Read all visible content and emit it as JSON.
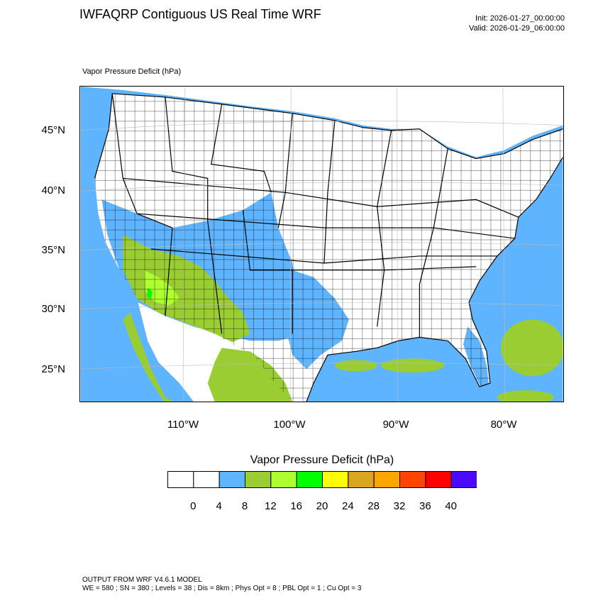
{
  "header": {
    "title": "IWFAQRP Contiguous US Real Time WRF",
    "init": "Init: 2026-01-27_00:00:00",
    "valid": "Valid: 2026-01-29_06:00:00"
  },
  "field": {
    "label": "Vapor Pressure Deficit   (hPa)"
  },
  "map": {
    "lat_labels": [
      "45°N",
      "40°N",
      "35°N",
      "30°N",
      "25°N"
    ],
    "lon_labels": [
      "110°W",
      "100°W",
      "90°W",
      "80°W"
    ],
    "colors": {
      "ocean_low_vpd": "#5fb4ff",
      "land_low": "#ffffff",
      "vpd_8_12": "#9acd32",
      "vpd_12_16": "#adff2f",
      "boundary": "#000000",
      "grid": "#bbbbbb"
    }
  },
  "legend": {
    "title": "Vapor Pressure Deficit  (hPa)",
    "labels": [
      "0",
      "4",
      "8",
      "12",
      "16",
      "20",
      "24",
      "28",
      "32",
      "36",
      "40"
    ],
    "colors": [
      "#ffffff",
      "#ffffff",
      "#5fb4ff",
      "#9acd32",
      "#adff2f",
      "#00ff00",
      "#ffff00",
      "#daa520",
      "#ffa500",
      "#ff4500",
      "#ff0000",
      "#4b0aff"
    ]
  },
  "footer": {
    "line1": "OUTPUT FROM WRF V4.6.1 MODEL",
    "line2": "WE = 580 ; SN = 380 ; Levels = 38 ; Dis = 8km ; Phys Opt = 8 ; PBL Opt = 1 ; Cu Opt = 3"
  }
}
